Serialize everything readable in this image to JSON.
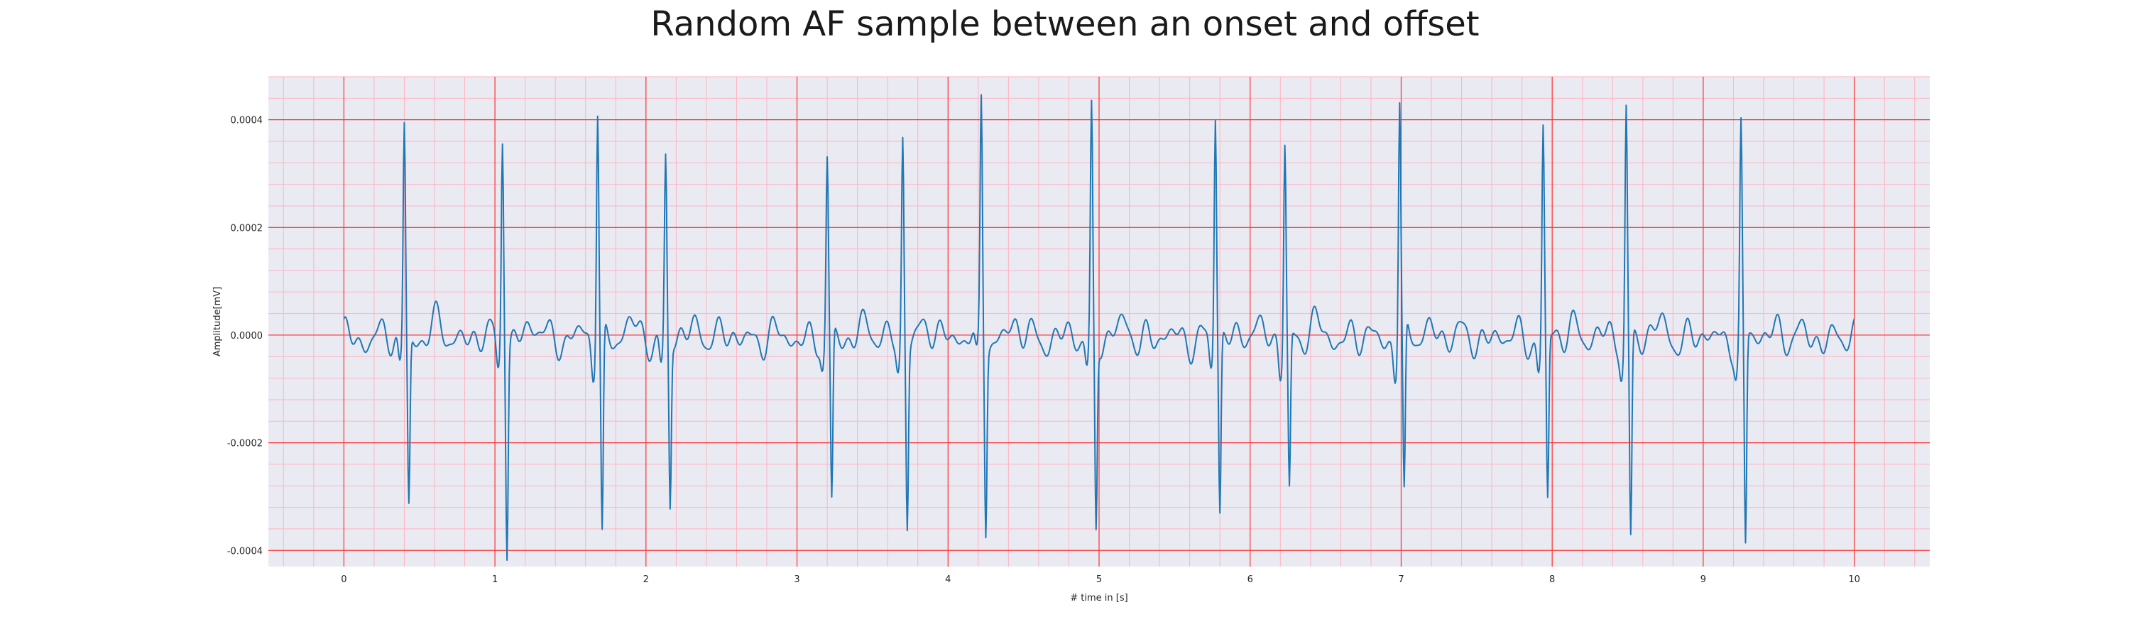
{
  "chart_data": {
    "type": "line",
    "title": "Random AF sample between an onset and offset",
    "xlabel": "# time in [s]",
    "ylabel": "Amplitude[mV]",
    "xlim": [
      -0.5,
      10.5
    ],
    "ylim": [
      -0.00043,
      0.00048
    ],
    "xticks": [
      0,
      1,
      2,
      3,
      4,
      5,
      6,
      7,
      8,
      9,
      10
    ],
    "xtick_labels": [
      "0",
      "1",
      "2",
      "3",
      "4",
      "5",
      "6",
      "7",
      "8",
      "9",
      "10"
    ],
    "yticks": [
      -0.0004,
      -0.0002,
      0.0,
      0.0002,
      0.0004
    ],
    "ytick_labels": [
      "-0.0004",
      "-0.0002",
      "0.0000",
      "0.0002",
      "0.0004"
    ],
    "grid": true,
    "grid_major_color": "#ff3030",
    "grid_minor_color": "#ffb3c1",
    "background_color": "#eaeaf2",
    "line_color": "#1f77b4",
    "r_peaks": [
      {
        "t": 0.4,
        "r": 0.0004,
        "s": -0.00031
      },
      {
        "t": 1.05,
        "r": 0.00039,
        "s": -0.00038
      },
      {
        "t": 1.68,
        "r": 0.00044,
        "s": -0.00038
      },
      {
        "t": 2.13,
        "r": 0.00033,
        "s": -0.00031
      },
      {
        "t": 3.2,
        "r": 0.00032,
        "s": -0.00032
      },
      {
        "t": 3.7,
        "r": 0.00038,
        "s": -0.00033
      },
      {
        "t": 4.22,
        "r": 0.00044,
        "s": -0.00034
      },
      {
        "t": 4.95,
        "r": 0.00042,
        "s": -0.00035
      },
      {
        "t": 5.77,
        "r": 0.00042,
        "s": -0.00033
      },
      {
        "t": 6.23,
        "r": 0.00037,
        "s": -0.00029
      },
      {
        "t": 6.99,
        "r": 0.00044,
        "s": -0.00032
      },
      {
        "t": 7.94,
        "r": 0.00039,
        "s": -0.00031
      },
      {
        "t": 8.49,
        "r": 0.00043,
        "s": -0.00038
      },
      {
        "t": 9.25,
        "r": 0.00038,
        "s": -0.0004
      }
    ]
  }
}
